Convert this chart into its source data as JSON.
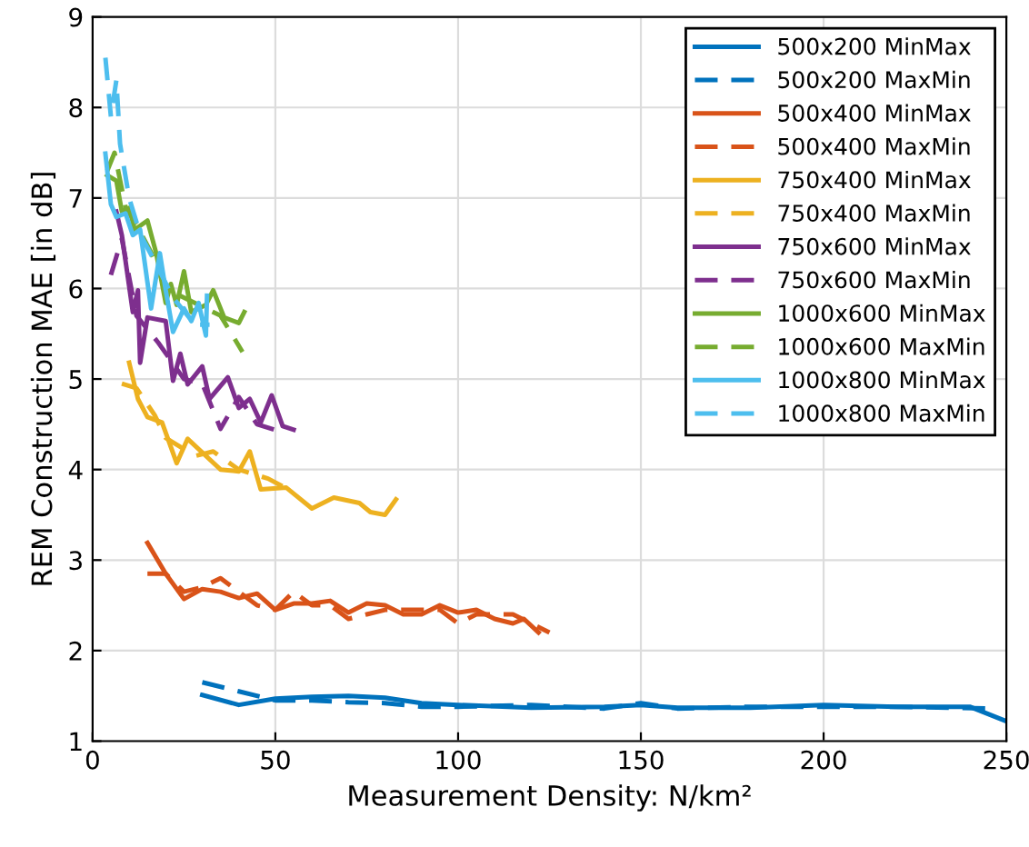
{
  "chart_data": {
    "type": "line",
    "xlabel": "Measurement Density: N/km²",
    "ylabel": "REM Construction MAE [in dB]",
    "xlim": [
      0,
      250
    ],
    "ylim": [
      1,
      9
    ],
    "xticks": [
      0,
      50,
      100,
      150,
      200,
      250
    ],
    "yticks": [
      1,
      2,
      3,
      4,
      5,
      6,
      7,
      8,
      9
    ],
    "grid": true,
    "legend": "top right",
    "marker": "none",
    "series": [
      {
        "name": "500x200 MinMax",
        "color": "#0072bd",
        "line_style": "solid",
        "x": [
          30,
          40,
          50,
          60,
          70,
          80,
          90,
          100,
          120,
          140,
          150,
          160,
          180,
          200,
          220,
          240,
          250
        ],
        "values": [
          1.51,
          1.4,
          1.47,
          1.49,
          1.5,
          1.48,
          1.42,
          1.4,
          1.37,
          1.38,
          1.4,
          1.37,
          1.37,
          1.4,
          1.38,
          1.38,
          1.22
        ]
      },
      {
        "name": "500x200 MaxMin",
        "color": "#0072bd",
        "line_style": "dashed",
        "x": [
          30,
          40,
          50,
          60,
          70,
          80,
          90,
          100,
          120,
          140,
          150,
          160,
          180,
          200,
          220,
          245
        ],
        "values": [
          1.65,
          1.55,
          1.45,
          1.45,
          1.43,
          1.42,
          1.38,
          1.38,
          1.4,
          1.36,
          1.42,
          1.36,
          1.38,
          1.38,
          1.38,
          1.36
        ]
      },
      {
        "name": "500x400 MinMax",
        "color": "#d95319",
        "line_style": "solid",
        "x": [
          15,
          20,
          25,
          30,
          35,
          40,
          45,
          50,
          55,
          60,
          65,
          70,
          75,
          80,
          85,
          90,
          95,
          100,
          105,
          110,
          115,
          118,
          122
        ],
        "values": [
          3.19,
          2.85,
          2.57,
          2.68,
          2.65,
          2.58,
          2.63,
          2.45,
          2.52,
          2.52,
          2.55,
          2.42,
          2.52,
          2.5,
          2.4,
          2.4,
          2.5,
          2.42,
          2.45,
          2.35,
          2.3,
          2.35,
          2.2
        ]
      },
      {
        "name": "500x400 MaxMin",
        "color": "#d95319",
        "line_style": "dashed",
        "x": [
          15,
          20,
          25,
          30,
          35,
          40,
          45,
          50,
          55,
          60,
          65,
          70,
          75,
          80,
          85,
          90,
          95,
          100,
          105,
          110,
          115,
          125
        ],
        "values": [
          2.85,
          2.85,
          2.65,
          2.7,
          2.8,
          2.65,
          2.5,
          2.45,
          2.65,
          2.5,
          2.5,
          2.35,
          2.4,
          2.45,
          2.45,
          2.45,
          2.45,
          2.3,
          2.4,
          2.4,
          2.4,
          2.2
        ]
      },
      {
        "name": "750x400 MinMax",
        "color": "#edb120",
        "line_style": "solid",
        "x": [
          10,
          12.4,
          15,
          19,
          23,
          26,
          35,
          40,
          43,
          46,
          53,
          60,
          66,
          73,
          76,
          80,
          83
        ],
        "values": [
          5.18,
          4.78,
          4.58,
          4.52,
          4.07,
          4.34,
          4.0,
          3.98,
          4.2,
          3.78,
          3.8,
          3.57,
          3.69,
          3.63,
          3.53,
          3.5,
          3.67
        ]
      },
      {
        "name": "750x400 MaxMin",
        "color": "#edb120",
        "line_style": "dashed",
        "x": [
          8,
          12,
          17,
          20,
          28,
          33,
          40,
          48,
          55
        ],
        "values": [
          4.95,
          4.9,
          4.6,
          4.35,
          4.15,
          4.2,
          4.0,
          3.9,
          3.75
        ]
      },
      {
        "name": "750x600 MinMax",
        "color": "#7e2f8e",
        "line_style": "solid",
        "x": [
          6.5,
          8,
          11,
          12.4,
          13,
          15,
          20,
          22,
          24,
          26,
          30,
          32,
          37,
          40,
          43,
          46,
          49,
          52,
          55
        ],
        "values": [
          6.85,
          6.59,
          5.74,
          5.98,
          5.18,
          5.68,
          5.64,
          4.98,
          5.28,
          4.94,
          5.14,
          4.78,
          5.02,
          4.68,
          4.78,
          4.52,
          4.82,
          4.48,
          4.44
        ]
      },
      {
        "name": "750x600 MaxMin",
        "color": "#7e2f8e",
        "line_style": "dashed",
        "x": [
          5,
          8,
          12,
          18,
          25,
          30,
          35,
          40,
          45,
          53
        ],
        "values": [
          6.15,
          6.55,
          5.7,
          5.4,
          5.0,
          4.95,
          4.45,
          4.8,
          4.5,
          4.4
        ]
      },
      {
        "name": "1000x600 MinMax",
        "color": "#77ac30",
        "line_style": "solid",
        "x": [
          4,
          6.5,
          8,
          10,
          11.5,
          15,
          17.4,
          20,
          21.4,
          23,
          25,
          27,
          31,
          33,
          36,
          40,
          41.5
        ],
        "values": [
          7.25,
          7.19,
          6.85,
          6.89,
          6.65,
          6.75,
          6.39,
          5.84,
          6.05,
          5.82,
          6.19,
          5.74,
          5.82,
          5.98,
          5.68,
          5.62,
          5.74
        ]
      },
      {
        "name": "1000x600 MaxMin",
        "color": "#77ac30",
        "line_style": "dashed",
        "x": [
          4,
          6,
          9,
          12,
          16,
          20,
          25,
          30,
          35,
          41
        ],
        "values": [
          7.3,
          7.5,
          6.9,
          6.7,
          6.4,
          6.0,
          5.9,
          5.8,
          5.7,
          5.3
        ]
      },
      {
        "name": "1000x800 MinMax",
        "color": "#4dbeee",
        "line_style": "solid",
        "x": [
          3.5,
          5,
          6.5,
          9,
          11,
          13,
          16,
          18.4,
          20,
          22,
          25,
          27,
          29,
          31,
          31.3
        ],
        "values": [
          7.49,
          6.93,
          6.79,
          6.83,
          6.59,
          6.65,
          5.78,
          6.39,
          5.98,
          5.52,
          5.78,
          5.64,
          5.84,
          5.48,
          5.92
        ]
      },
      {
        "name": "1000x800 MaxMin",
        "color": "#4dbeee",
        "line_style": "dashed",
        "x": [
          3.5,
          5,
          6.5,
          7.5,
          10,
          13,
          17,
          22,
          28,
          32
        ],
        "values": [
          8.55,
          7.9,
          8.3,
          7.6,
          7.0,
          6.6,
          6.3,
          5.9,
          5.6,
          5.6
        ]
      }
    ]
  }
}
